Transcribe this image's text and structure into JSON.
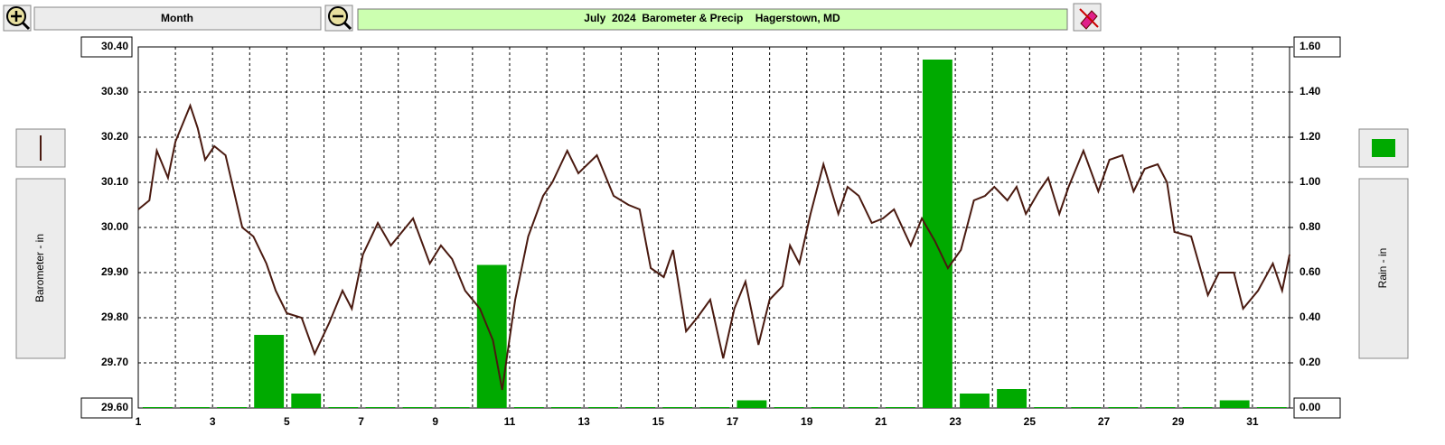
{
  "ui": {
    "zoom_button": "Month"
  },
  "chart_data": {
    "type": "combo",
    "title": "July  2024  Barometer & Precip    Hagerstown, MD",
    "ylabel": "Barometer - in",
    "y2label": "Rain - in",
    "xlim": [
      1,
      32
    ],
    "xticks": [
      1,
      3,
      5,
      7,
      9,
      11,
      13,
      15,
      17,
      19,
      21,
      23,
      25,
      27,
      29,
      31
    ],
    "xminorticks": [
      2,
      4,
      6,
      8,
      10,
      12,
      14,
      16,
      18,
      20,
      22,
      24,
      26,
      28,
      30,
      32
    ],
    "ylim": [
      29.6,
      30.4
    ],
    "yticks": [
      {
        "value": 29.6,
        "label": "29.60"
      },
      {
        "value": 29.7,
        "label": "29.70"
      },
      {
        "value": 29.8,
        "label": "29.80"
      },
      {
        "value": 29.9,
        "label": "29.90"
      },
      {
        "value": 30.0,
        "label": "30.00"
      },
      {
        "value": 30.1,
        "label": "30.10"
      },
      {
        "value": 30.2,
        "label": "30.20"
      },
      {
        "value": 30.3,
        "label": "30.30"
      },
      {
        "value": 30.4,
        "label": "30.40"
      }
    ],
    "y2lim": [
      0,
      1.6
    ],
    "y2ticks": [
      {
        "value": 0,
        "label": "0.00"
      },
      {
        "value": 0.2,
        "label": "0.20"
      },
      {
        "value": 0.4,
        "label": "0.40"
      },
      {
        "value": 0.6,
        "label": "0.60"
      },
      {
        "value": 0.8,
        "label": "0.80"
      },
      {
        "value": 1.0,
        "label": "1.00"
      },
      {
        "value": 1.2,
        "label": "1.20"
      },
      {
        "value": 1.4,
        "label": "1.40"
      },
      {
        "value": 1.6,
        "label": "1.60"
      }
    ],
    "grid": true,
    "series": [
      {
        "name": "Barometer",
        "type": "line",
        "axis": "y",
        "color": "#4a1a10",
        "x": [
          1,
          1.3,
          1.5,
          1.8,
          2.0,
          2.4,
          2.6,
          2.8,
          3.05,
          3.35,
          3.8,
          4.1,
          4.45,
          4.7,
          5.0,
          5.4,
          5.75,
          6.15,
          6.5,
          6.75,
          7.05,
          7.45,
          7.8,
          8.1,
          8.4,
          8.85,
          9.15,
          9.45,
          9.8,
          10.2,
          10.55,
          10.8,
          11.15,
          11.5,
          11.9,
          12.15,
          12.55,
          12.85,
          13.35,
          13.8,
          14.2,
          14.5,
          14.8,
          15.15,
          15.4,
          15.75,
          16.05,
          16.4,
          16.75,
          17.05,
          17.35,
          17.7,
          18.0,
          18.35,
          18.55,
          18.8,
          19.1,
          19.45,
          19.85,
          20.1,
          20.4,
          20.75,
          21.05,
          21.35,
          21.8,
          22.1,
          22.45,
          22.8,
          23.15,
          23.5,
          23.8,
          24.05,
          24.4,
          24.65,
          24.9,
          25.25,
          25.5,
          25.8,
          26.05,
          26.45,
          26.85,
          27.15,
          27.5,
          27.8,
          28.1,
          28.45,
          28.7,
          28.9,
          29.35,
          29.8,
          30.1,
          30.5,
          30.75,
          31.15,
          31.55,
          31.8,
          32.0
        ],
        "values": [
          30.04,
          30.06,
          30.17,
          30.11,
          30.19,
          30.27,
          30.22,
          30.15,
          30.18,
          30.16,
          30.0,
          29.98,
          29.92,
          29.86,
          29.81,
          29.8,
          29.72,
          29.79,
          29.86,
          29.82,
          29.94,
          30.01,
          29.96,
          29.99,
          30.02,
          29.92,
          29.96,
          29.93,
          29.86,
          29.82,
          29.75,
          29.64,
          29.84,
          29.98,
          30.07,
          30.1,
          30.17,
          30.12,
          30.16,
          30.07,
          30.05,
          30.04,
          29.91,
          29.89,
          29.95,
          29.77,
          29.8,
          29.84,
          29.71,
          29.82,
          29.88,
          29.74,
          29.84,
          29.87,
          29.96,
          29.92,
          30.03,
          30.14,
          30.03,
          30.09,
          30.07,
          30.01,
          30.02,
          30.04,
          29.96,
          30.02,
          29.97,
          29.91,
          29.95,
          30.06,
          30.07,
          30.09,
          30.06,
          30.09,
          30.03,
          30.08,
          30.11,
          30.03,
          30.09,
          30.17,
          30.08,
          30.15,
          30.16,
          30.08,
          30.13,
          30.14,
          30.1,
          29.99,
          29.98,
          29.85,
          29.9,
          29.9,
          29.82,
          29.86,
          29.92,
          29.86,
          29.94
        ]
      },
      {
        "name": "Rain",
        "type": "bar",
        "axis": "y2",
        "color": "#00aa00",
        "x": [
          1,
          2,
          3,
          4,
          5,
          6,
          7,
          8,
          9,
          10,
          11,
          12,
          13,
          14,
          15,
          16,
          17,
          18,
          19,
          20,
          21,
          22,
          23,
          24,
          25,
          26,
          27,
          28,
          29,
          30,
          31
        ],
        "values": [
          0,
          0,
          0,
          0.32,
          0.06,
          0,
          0,
          0,
          0,
          0.63,
          0,
          0,
          0,
          0,
          0,
          0,
          0.03,
          0,
          0,
          0,
          0,
          1.54,
          0.06,
          0.08,
          0,
          0,
          0,
          0,
          0,
          0.03,
          0
        ]
      }
    ]
  }
}
